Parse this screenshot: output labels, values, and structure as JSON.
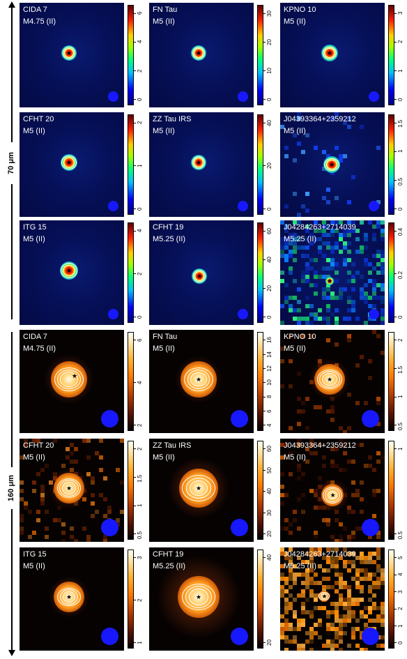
{
  "side_labels": {
    "band_70": "70 μm",
    "band_160": "160 μm"
  },
  "panels_70": [
    {
      "name": "CIDA 7",
      "spec": "M4.75 (II)",
      "ticks": [
        "0",
        "2",
        "4",
        "6"
      ]
    },
    {
      "name": "FN Tau",
      "spec": "M5 (II)",
      "ticks": [
        "0",
        "10",
        "20",
        "30"
      ]
    },
    {
      "name": "KPNO 10",
      "spec": "M5 (II)",
      "ticks": [
        "0",
        "1",
        "2",
        "3"
      ]
    },
    {
      "name": "CFHT 20",
      "spec": "M5 (II)",
      "ticks": [
        "0",
        "1",
        "2"
      ]
    },
    {
      "name": "ZZ Tau IRS",
      "spec": "M5 (II)",
      "ticks": [
        "0",
        "20",
        "40"
      ]
    },
    {
      "name": "J04393364+2359212",
      "spec": "M5 (II)",
      "ticks": [
        "0",
        "0.5",
        "1",
        "1.5"
      ]
    },
    {
      "name": "ITG 15",
      "spec": "M5 (II)",
      "ticks": [
        "0",
        "2",
        "4"
      ]
    },
    {
      "name": "CFHT 19",
      "spec": "M5.25 (II)",
      "ticks": [
        "0",
        "20",
        "40",
        "60"
      ]
    },
    {
      "name": "J04284263+2714039",
      "spec": "M5.25 (II)",
      "ticks": [
        "0",
        "0.2",
        "0.4"
      ]
    }
  ],
  "panels_160": [
    {
      "name": "CIDA 7",
      "spec": "M4.75 (II)",
      "ticks": [
        "2",
        "4",
        "6"
      ]
    },
    {
      "name": "FN Tau",
      "spec": "M5 (II)",
      "ticks": [
        "4",
        "6",
        "8",
        "10",
        "12",
        "14",
        "16"
      ]
    },
    {
      "name": "KPNO 10",
      "spec": "M5 (II)",
      "ticks": [
        "0.5",
        "1",
        "1.5",
        "2"
      ]
    },
    {
      "name": "CFHT 20",
      "spec": "M5 (II)",
      "ticks": [
        "0.5",
        "1",
        "1.5",
        "2"
      ]
    },
    {
      "name": "ZZ Tau IRS",
      "spec": "M5 (II)",
      "ticks": [
        "20",
        "30",
        "40",
        "50",
        "60"
      ]
    },
    {
      "name": "J04393364+2359212",
      "spec": "M5 (II)",
      "ticks": [
        "0.5",
        "1"
      ]
    },
    {
      "name": "ITG 15",
      "spec": "M5 (II)",
      "ticks": [
        "1",
        "2",
        "3"
      ]
    },
    {
      "name": "CFHT 19",
      "spec": "M5.25 (II)",
      "ticks": [
        "20",
        "40"
      ]
    },
    {
      "name": "J04284263+2714039",
      "spec": "M5.25 (II)",
      "ticks": [
        "0",
        "1",
        "2",
        "3",
        "4",
        "5"
      ]
    }
  ],
  "colors": {
    "beam": "#1818ff",
    "contour": "#ffffff",
    "bg70": "#061058",
    "bg160": "#060202"
  }
}
